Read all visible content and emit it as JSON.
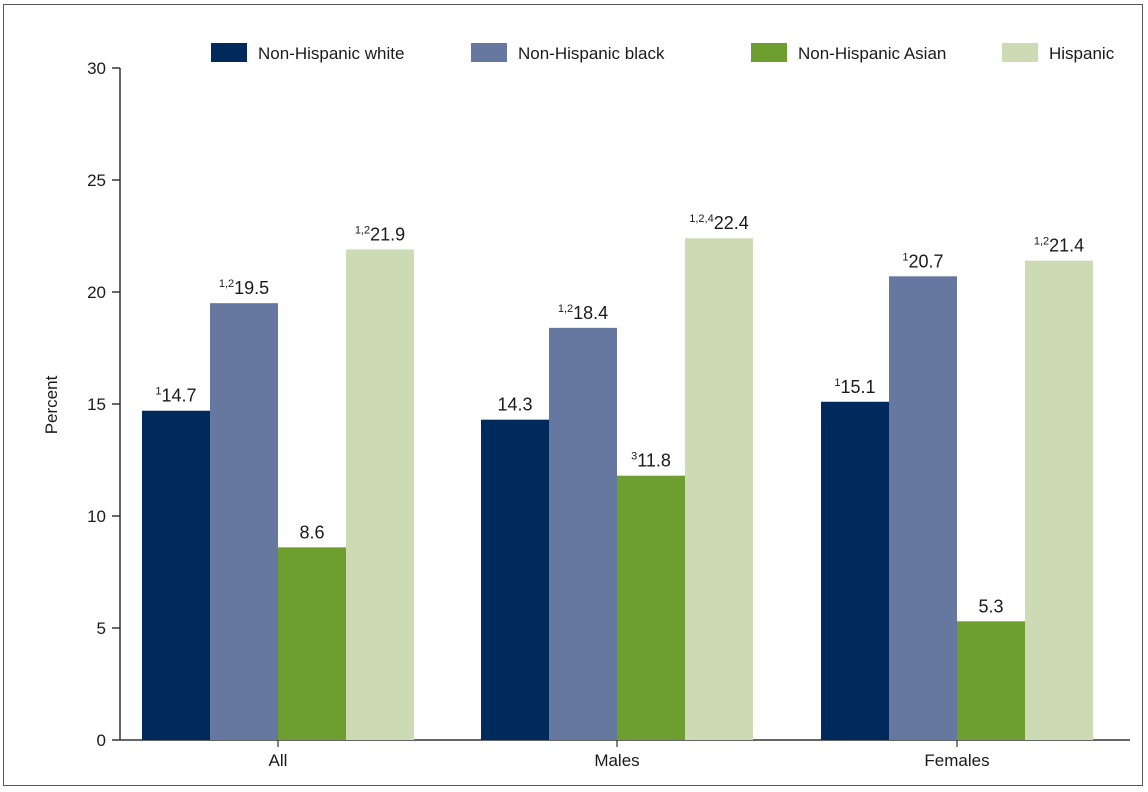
{
  "chart_data": {
    "type": "bar",
    "title": "",
    "xlabel": "",
    "ylabel": "Percent",
    "ylim": [
      0,
      30
    ],
    "yticks": [
      0,
      5,
      10,
      15,
      20,
      25,
      30
    ],
    "grid": false,
    "legend_position": "top",
    "categories": [
      "All",
      "Males",
      "Females"
    ],
    "series": [
      {
        "name": "Non-Hispanic white",
        "color": "#002a5c",
        "values": [
          14.7,
          14.3,
          15.1
        ],
        "footnotes": [
          "1",
          "",
          "1"
        ]
      },
      {
        "name": "Non-Hispanic black",
        "color": "#66789f",
        "values": [
          19.5,
          18.4,
          20.7
        ],
        "footnotes": [
          "1,2",
          "1,2",
          "1"
        ]
      },
      {
        "name": "Non-Hispanic Asian",
        "color": "#6e9e30",
        "values": [
          8.6,
          11.8,
          5.3
        ],
        "footnotes": [
          "",
          "3",
          ""
        ]
      },
      {
        "name": "Hispanic",
        "color": "#cddbb5",
        "values": [
          21.9,
          22.4,
          21.4
        ],
        "footnotes": [
          "1,2",
          "1,2,4",
          "1,2"
        ]
      }
    ]
  }
}
